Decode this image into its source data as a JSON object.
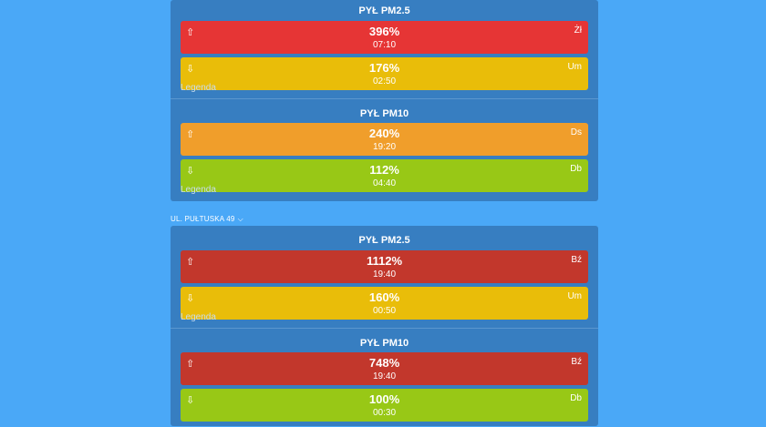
{
  "stations": [
    {
      "sections": [
        {
          "title": "PYŁ PM2.5",
          "legend": "Legenda",
          "readings": [
            {
              "arrow": "⇧",
              "percent": "396%",
              "time": "07:10",
              "grade": "Żł",
              "color": "#e63535"
            },
            {
              "arrow": "⇩",
              "percent": "176%",
              "time": "02:50",
              "grade": "Um",
              "color": "#e9bd09"
            }
          ]
        },
        {
          "title": "PYŁ PM10",
          "legend": "Legenda",
          "readings": [
            {
              "arrow": "⇧",
              "percent": "240%",
              "time": "19:20",
              "grade": "Ds",
              "color": "#f09e2b"
            },
            {
              "arrow": "⇩",
              "percent": "112%",
              "time": "04:40",
              "grade": "Db",
              "color": "#98c816"
            }
          ]
        }
      ]
    },
    {
      "location": "UL. PUŁTUSKA 49",
      "sections": [
        {
          "title": "PYŁ PM2.5",
          "legend": "Legenda",
          "readings": [
            {
              "arrow": "⇧",
              "percent": "1112%",
              "time": "19:40",
              "grade": "Bź",
              "color": "#c2372c"
            },
            {
              "arrow": "⇩",
              "percent": "160%",
              "time": "00:50",
              "grade": "Um",
              "color": "#e9bd09"
            }
          ]
        },
        {
          "title": "PYŁ PM10",
          "legend": "",
          "readings": [
            {
              "arrow": "⇧",
              "percent": "748%",
              "time": "19:40",
              "grade": "Bź",
              "color": "#c2372c"
            },
            {
              "arrow": "⇩",
              "percent": "100%",
              "time": "00:30",
              "grade": "Db",
              "color": "#98c816"
            }
          ]
        }
      ]
    }
  ]
}
